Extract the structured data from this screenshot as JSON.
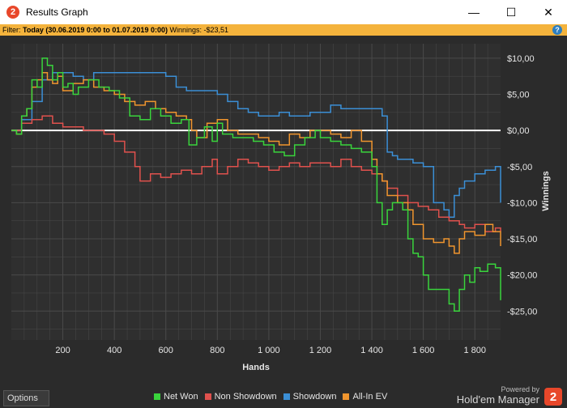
{
  "window": {
    "title": "Results Graph",
    "icon_glyph": "2",
    "minimize_glyph": "—",
    "maximize_glyph": "☐",
    "close_glyph": "✕"
  },
  "filter": {
    "label": "Filter:",
    "value": "Today (30.06.2019 0:00 to 01.07.2019 0:00)",
    "winnings_label": "Winnings:",
    "winnings_value": "-$23,51",
    "help_glyph": "?"
  },
  "options_label": "Options",
  "branding": {
    "powered_by": "Powered by",
    "product": "Hold'em Manager",
    "logo_glyph": "2"
  },
  "colors": {
    "net_won": "#39d43c",
    "non_showdown": "#e0514d",
    "showdown": "#3b8fd6",
    "all_in_ev": "#f0952e",
    "zero_line": "#ffffff",
    "grid": "#4a4a4a",
    "plot_bg": "#2f2f2f"
  },
  "chart_data": {
    "type": "line",
    "xlabel": "Hands",
    "ylabel": "Winnings",
    "xlim": [
      0,
      1900
    ],
    "ylim": [
      -29,
      12
    ],
    "x_ticks": [
      200,
      400,
      600,
      800,
      1000,
      1200,
      1400,
      1600,
      1800
    ],
    "x_tick_labels": [
      "200",
      "400",
      "600",
      "800",
      "1 000",
      "1 200",
      "1 400",
      "1 600",
      "1 800"
    ],
    "y_ticks": [
      10,
      5,
      0,
      -5,
      -10,
      -15,
      -20,
      -25
    ],
    "y_tick_labels": [
      "$10,00",
      "$5,00",
      "$0,00",
      "-$5,00",
      "-$10,00",
      "-$15,00",
      "-$20,00",
      "-$25,00"
    ],
    "grid": true,
    "legend_position": "bottom",
    "series": [
      {
        "name": "Net Won",
        "color_key": "net_won",
        "points": [
          [
            0,
            0
          ],
          [
            20,
            -0.5
          ],
          [
            40,
            2
          ],
          [
            60,
            3
          ],
          [
            80,
            7
          ],
          [
            100,
            6
          ],
          [
            120,
            10
          ],
          [
            140,
            9
          ],
          [
            160,
            7
          ],
          [
            180,
            8
          ],
          [
            200,
            6
          ],
          [
            220,
            6.5
          ],
          [
            240,
            5
          ],
          [
            260,
            6
          ],
          [
            300,
            7
          ],
          [
            340,
            6
          ],
          [
            380,
            5.5
          ],
          [
            420,
            4.5
          ],
          [
            460,
            2
          ],
          [
            500,
            1.5
          ],
          [
            540,
            3
          ],
          [
            580,
            2
          ],
          [
            620,
            1
          ],
          [
            660,
            1.5
          ],
          [
            690,
            -2
          ],
          [
            720,
            -1
          ],
          [
            750,
            0.5
          ],
          [
            780,
            -1.5
          ],
          [
            800,
            1
          ],
          [
            820,
            -0.5
          ],
          [
            860,
            -1
          ],
          [
            900,
            -1
          ],
          [
            940,
            -1.5
          ],
          [
            980,
            -2
          ],
          [
            1020,
            -3
          ],
          [
            1060,
            -3.5
          ],
          [
            1100,
            -2
          ],
          [
            1140,
            -1
          ],
          [
            1180,
            0
          ],
          [
            1200,
            -1
          ],
          [
            1240,
            -1.5
          ],
          [
            1280,
            -2
          ],
          [
            1320,
            -2.5
          ],
          [
            1360,
            -3
          ],
          [
            1400,
            -5
          ],
          [
            1420,
            -10
          ],
          [
            1440,
            -13
          ],
          [
            1460,
            -11
          ],
          [
            1480,
            -10
          ],
          [
            1520,
            -11
          ],
          [
            1540,
            -15
          ],
          [
            1560,
            -17
          ],
          [
            1580,
            -17.5
          ],
          [
            1600,
            -20
          ],
          [
            1620,
            -22
          ],
          [
            1650,
            -22
          ],
          [
            1680,
            -22
          ],
          [
            1700,
            -24
          ],
          [
            1720,
            -25
          ],
          [
            1740,
            -22
          ],
          [
            1760,
            -20
          ],
          [
            1780,
            -21
          ],
          [
            1800,
            -19
          ],
          [
            1820,
            -19.5
          ],
          [
            1850,
            -18.5
          ],
          [
            1880,
            -19
          ],
          [
            1900,
            -23.5
          ]
        ]
      },
      {
        "name": "Non Showdown",
        "color_key": "non_showdown",
        "points": [
          [
            0,
            0
          ],
          [
            40,
            1
          ],
          [
            80,
            1.5
          ],
          [
            120,
            2
          ],
          [
            160,
            1
          ],
          [
            200,
            0.5
          ],
          [
            240,
            0.5
          ],
          [
            280,
            0
          ],
          [
            320,
            0
          ],
          [
            360,
            -0.5
          ],
          [
            400,
            -1.5
          ],
          [
            440,
            -3
          ],
          [
            480,
            -5
          ],
          [
            500,
            -7
          ],
          [
            540,
            -6
          ],
          [
            580,
            -6.5
          ],
          [
            620,
            -6
          ],
          [
            660,
            -5.5
          ],
          [
            700,
            -6
          ],
          [
            740,
            -5
          ],
          [
            780,
            -4
          ],
          [
            800,
            -6
          ],
          [
            840,
            -5
          ],
          [
            880,
            -4
          ],
          [
            920,
            -4.5
          ],
          [
            960,
            -5
          ],
          [
            1000,
            -5.5
          ],
          [
            1040,
            -5
          ],
          [
            1080,
            -4.5
          ],
          [
            1120,
            -5
          ],
          [
            1160,
            -4.5
          ],
          [
            1200,
            -4.5
          ],
          [
            1240,
            -5
          ],
          [
            1280,
            -4
          ],
          [
            1320,
            -5
          ],
          [
            1360,
            -5.5
          ],
          [
            1400,
            -6
          ],
          [
            1440,
            -7
          ],
          [
            1460,
            -8
          ],
          [
            1500,
            -9
          ],
          [
            1540,
            -10
          ],
          [
            1580,
            -10.5
          ],
          [
            1620,
            -11
          ],
          [
            1660,
            -12
          ],
          [
            1700,
            -12.5
          ],
          [
            1740,
            -13
          ],
          [
            1760,
            -13.5
          ],
          [
            1800,
            -13
          ],
          [
            1840,
            -14
          ],
          [
            1880,
            -13.5
          ],
          [
            1900,
            -14
          ]
        ]
      },
      {
        "name": "Showdown",
        "color_key": "showdown",
        "points": [
          [
            0,
            0
          ],
          [
            40,
            1.5
          ],
          [
            80,
            4
          ],
          [
            120,
            7
          ],
          [
            160,
            8
          ],
          [
            200,
            8
          ],
          [
            240,
            7.5
          ],
          [
            280,
            7
          ],
          [
            320,
            8
          ],
          [
            360,
            8
          ],
          [
            400,
            8
          ],
          [
            440,
            8
          ],
          [
            480,
            8
          ],
          [
            520,
            8
          ],
          [
            560,
            8
          ],
          [
            600,
            7.5
          ],
          [
            640,
            6
          ],
          [
            680,
            5.5
          ],
          [
            720,
            5.5
          ],
          [
            760,
            5.5
          ],
          [
            800,
            5
          ],
          [
            840,
            4
          ],
          [
            880,
            3
          ],
          [
            920,
            2.5
          ],
          [
            960,
            2
          ],
          [
            1000,
            2
          ],
          [
            1040,
            2.5
          ],
          [
            1080,
            2
          ],
          [
            1120,
            2
          ],
          [
            1160,
            2.5
          ],
          [
            1200,
            2.5
          ],
          [
            1240,
            3.5
          ],
          [
            1280,
            3
          ],
          [
            1320,
            3
          ],
          [
            1360,
            3
          ],
          [
            1400,
            3
          ],
          [
            1420,
            3
          ],
          [
            1440,
            2
          ],
          [
            1460,
            -3
          ],
          [
            1480,
            -3.5
          ],
          [
            1500,
            -4
          ],
          [
            1540,
            -4
          ],
          [
            1560,
            -4.5
          ],
          [
            1600,
            -5
          ],
          [
            1640,
            -10
          ],
          [
            1680,
            -11
          ],
          [
            1700,
            -12
          ],
          [
            1720,
            -9
          ],
          [
            1740,
            -8
          ],
          [
            1760,
            -7
          ],
          [
            1800,
            -6
          ],
          [
            1840,
            -5.5
          ],
          [
            1880,
            -5
          ],
          [
            1900,
            -10
          ]
        ]
      },
      {
        "name": "All-In EV",
        "color_key": "all_in_ev",
        "points": [
          [
            0,
            0
          ],
          [
            20,
            -0.5
          ],
          [
            40,
            2
          ],
          [
            60,
            3
          ],
          [
            80,
            6
          ],
          [
            100,
            7
          ],
          [
            120,
            8
          ],
          [
            140,
            7
          ],
          [
            160,
            6.5
          ],
          [
            180,
            7.5
          ],
          [
            200,
            5.5
          ],
          [
            240,
            6.5
          ],
          [
            280,
            7
          ],
          [
            320,
            6
          ],
          [
            360,
            5.5
          ],
          [
            400,
            5
          ],
          [
            440,
            4
          ],
          [
            480,
            3.5
          ],
          [
            520,
            4
          ],
          [
            560,
            3
          ],
          [
            600,
            2.5
          ],
          [
            640,
            2
          ],
          [
            680,
            1.5
          ],
          [
            700,
            0
          ],
          [
            720,
            -1
          ],
          [
            760,
            1
          ],
          [
            800,
            1.5
          ],
          [
            840,
            0
          ],
          [
            880,
            -0.5
          ],
          [
            920,
            -0.5
          ],
          [
            960,
            -1
          ],
          [
            1000,
            -1.5
          ],
          [
            1040,
            -2
          ],
          [
            1080,
            -0.5
          ],
          [
            1120,
            -1
          ],
          [
            1160,
            0
          ],
          [
            1200,
            0
          ],
          [
            1240,
            -0.5
          ],
          [
            1280,
            -1
          ],
          [
            1320,
            0
          ],
          [
            1360,
            -1.5
          ],
          [
            1400,
            -4
          ],
          [
            1420,
            -6
          ],
          [
            1440,
            -7
          ],
          [
            1460,
            -9
          ],
          [
            1500,
            -10
          ],
          [
            1540,
            -11
          ],
          [
            1560,
            -13
          ],
          [
            1600,
            -15
          ],
          [
            1640,
            -15.5
          ],
          [
            1680,
            -15
          ],
          [
            1700,
            -16
          ],
          [
            1720,
            -17
          ],
          [
            1740,
            -15
          ],
          [
            1760,
            -14
          ],
          [
            1800,
            -14.5
          ],
          [
            1840,
            -13
          ],
          [
            1870,
            -14
          ],
          [
            1900,
            -16
          ]
        ]
      }
    ]
  }
}
